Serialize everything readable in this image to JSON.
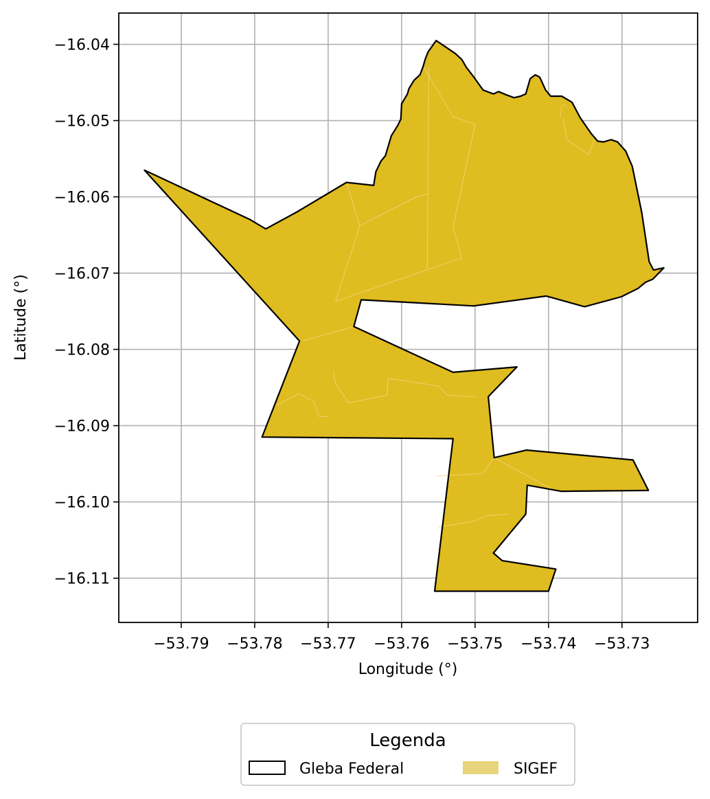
{
  "map": {
    "xlabel": "Longitude (°)",
    "ylabel": "Latitude (°)",
    "xlim": [
      -53.7985,
      -53.7197
    ],
    "ylim": [
      -16.1158,
      -16.0359
    ],
    "xticks": [
      -53.79,
      -53.78,
      -53.77,
      -53.76,
      -53.75,
      -53.74,
      -53.73
    ],
    "xtick_labels": [
      "−53.79",
      "−53.78",
      "−53.77",
      "−53.76",
      "−53.75",
      "−53.74",
      "−53.73"
    ],
    "yticks": [
      -16.04,
      -16.05,
      -16.06,
      -16.07,
      -16.08,
      -16.09,
      -16.1,
      -16.11
    ],
    "ytick_labels": [
      "−16.04",
      "−16.05",
      "−16.06",
      "−16.07",
      "−16.08",
      "−16.09",
      "−16.10",
      "−16.11"
    ],
    "grid": true,
    "colors": {
      "sigef_fill": "#dfbc20",
      "gleba_edge": "#000000",
      "grid": "#b0b0b0",
      "parcel_lines": "#eeda80"
    }
  },
  "legend": {
    "title": "Legenda",
    "placement": "bottom-center",
    "items": [
      {
        "label": "Gleba Federal",
        "style": "outline",
        "color": "#000000"
      },
      {
        "label": "SIGEF",
        "style": "fill",
        "color": "#e8d47a"
      }
    ]
  },
  "chart_data": {
    "type": "map",
    "layers": [
      {
        "name": "Gleba Federal",
        "kind": "boundary-outline"
      },
      {
        "name": "SIGEF",
        "kind": "filled-parcels"
      }
    ],
    "xlabel": "Longitude (°)",
    "ylabel": "Latitude (°)",
    "xlim": [
      -53.7985,
      -53.7197
    ],
    "ylim": [
      -16.1158,
      -16.0359
    ],
    "boundary": [
      [
        -53.795,
        -16.0565
      ],
      [
        -53.7806,
        -16.063
      ],
      [
        -53.7785,
        -16.0642
      ],
      [
        -53.7741,
        -16.0619
      ],
      [
        -53.7675,
        -16.0581
      ],
      [
        -53.7638,
        -16.0585
      ],
      [
        -53.7635,
        -16.0567
      ],
      [
        -53.7628,
        -16.0553
      ],
      [
        -53.7622,
        -16.0546
      ],
      [
        -53.7614,
        -16.052
      ],
      [
        -53.7605,
        -16.0506
      ],
      [
        -53.7601,
        -16.0498
      ],
      [
        -53.76,
        -16.0478
      ],
      [
        -53.7592,
        -16.0465
      ],
      [
        -53.759,
        -16.0458
      ],
      [
        -53.7583,
        -16.0447
      ],
      [
        -53.7575,
        -16.044
      ],
      [
        -53.7571,
        -16.043
      ],
      [
        -53.7568,
        -16.042
      ],
      [
        -53.7564,
        -16.041
      ],
      [
        -53.7553,
        -16.0395
      ],
      [
        -53.7527,
        -16.0412
      ],
      [
        -53.7518,
        -16.042
      ],
      [
        -53.7512,
        -16.043
      ],
      [
        -53.7504,
        -16.044
      ],
      [
        -53.7489,
        -16.046
      ],
      [
        -53.7475,
        -16.0465
      ],
      [
        -53.7468,
        -16.0462
      ],
      [
        -53.7458,
        -16.0466
      ],
      [
        -53.7447,
        -16.047
      ],
      [
        -53.7438,
        -16.0468
      ],
      [
        -53.7431,
        -16.0465
      ],
      [
        -53.7425,
        -16.0445
      ],
      [
        -53.7418,
        -16.044
      ],
      [
        -53.7412,
        -16.0443
      ],
      [
        -53.7404,
        -16.046
      ],
      [
        -53.7397,
        -16.0468
      ],
      [
        -53.7382,
        -16.0468
      ],
      [
        -53.7368,
        -16.0476
      ],
      [
        -53.7357,
        -16.0496
      ],
      [
        -53.7342,
        -16.0517
      ],
      [
        -53.7333,
        -16.0527
      ],
      [
        -53.7325,
        -16.0528
      ],
      [
        -53.7315,
        -16.0525
      ],
      [
        -53.7306,
        -16.0528
      ],
      [
        -53.7295,
        -16.054
      ],
      [
        -53.7286,
        -16.056
      ],
      [
        -53.7273,
        -16.0621
      ],
      [
        -53.7263,
        -16.0685
      ],
      [
        -53.7257,
        -16.0696
      ],
      [
        -53.7243,
        -16.0693
      ],
      [
        -53.7258,
        -16.0708
      ],
      [
        -53.7268,
        -16.0712
      ],
      [
        -53.7278,
        -16.072
      ],
      [
        -53.7301,
        -16.0731
      ],
      [
        -53.7351,
        -16.0744
      ],
      [
        -53.7403,
        -16.073
      ],
      [
        -53.7502,
        -16.0743
      ],
      [
        -53.7655,
        -16.0735
      ],
      [
        -53.7665,
        -16.077
      ],
      [
        -53.753,
        -16.083
      ],
      [
        -53.7443,
        -16.0823
      ],
      [
        -53.7482,
        -16.0862
      ],
      [
        -53.7474,
        -16.0942
      ],
      [
        -53.743,
        -16.0932
      ],
      [
        -53.7285,
        -16.0945
      ],
      [
        -53.7264,
        -16.0985
      ],
      [
        -53.7383,
        -16.0986
      ],
      [
        -53.7429,
        -16.0978
      ],
      [
        -53.7431,
        -16.1016
      ],
      [
        -53.7475,
        -16.1067
      ],
      [
        -53.7463,
        -16.1077
      ],
      [
        -53.739,
        -16.1088
      ],
      [
        -53.74,
        -16.1117
      ],
      [
        -53.7555,
        -16.1117
      ],
      [
        -53.753,
        -16.0917
      ],
      [
        -53.779,
        -16.0915
      ],
      [
        -53.7739,
        -16.0789
      ]
    ],
    "parcel_lines": [
      [
        [
          -53.7675,
          -16.0581
        ],
        [
          -53.7657,
          -16.0638
        ],
        [
          -53.758,
          -16.06
        ],
        [
          -53.7563,
          -16.0596
        ]
      ],
      [
        [
          -53.7657,
          -16.0638
        ],
        [
          -53.769,
          -16.0737
        ]
      ],
      [
        [
          -53.769,
          -16.0737
        ],
        [
          -53.7563,
          -16.0695
        ],
        [
          -53.7518,
          -16.068
        ]
      ],
      [
        [
          -53.7563,
          -16.043
        ],
        [
          -53.7565,
          -16.0695
        ]
      ],
      [
        [
          -53.7518,
          -16.068
        ],
        [
          -53.753,
          -16.064
        ],
        [
          -53.75,
          -16.0505
        ]
      ],
      [
        [
          -53.75,
          -16.0505
        ],
        [
          -53.753,
          -16.0495
        ],
        [
          -53.757,
          -16.043
        ]
      ],
      [
        [
          -53.738,
          -16.0497
        ],
        [
          -53.7375,
          -16.0525
        ],
        [
          -53.7345,
          -16.0545
        ],
        [
          -53.7338,
          -16.0525
        ]
      ],
      [
        [
          -53.7735,
          -16.0789
        ],
        [
          -53.7665,
          -16.077
        ]
      ],
      [
        [
          -53.777,
          -16.0873
        ],
        [
          -53.774,
          -16.0858
        ],
        [
          -53.772,
          -16.0868
        ],
        [
          -53.7712,
          -16.0888
        ],
        [
          -53.77,
          -16.0888
        ]
      ],
      [
        [
          -53.7693,
          -16.0828
        ],
        [
          -53.769,
          -16.0845
        ],
        [
          -53.7672,
          -16.087
        ],
        [
          -53.762,
          -16.086
        ]
      ],
      [
        [
          -53.762,
          -16.086
        ],
        [
          -53.7618,
          -16.0838
        ]
      ],
      [
        [
          -53.7618,
          -16.0838
        ],
        [
          -53.757,
          -16.0845
        ],
        [
          -53.755,
          -16.0848
        ],
        [
          -53.7538,
          -16.086
        ],
        [
          -53.75,
          -16.0862
        ]
      ],
      [
        [
          -53.7553,
          -16.0966
        ],
        [
          -53.749,
          -16.0963
        ],
        [
          -53.7474,
          -16.0942
        ]
      ],
      [
        [
          -53.7474,
          -16.0942
        ],
        [
          -53.739,
          -16.0986
        ]
      ],
      [
        [
          -53.755,
          -16.1033
        ],
        [
          -53.75,
          -16.1025
        ],
        [
          -53.7485,
          -16.1018
        ],
        [
          -53.7455,
          -16.1016
        ]
      ],
      [
        [
          -53.7384,
          -16.0495
        ],
        [
          -53.7382,
          -16.0481
        ],
        [
          -53.7377,
          -16.0479
        ]
      ]
    ]
  }
}
